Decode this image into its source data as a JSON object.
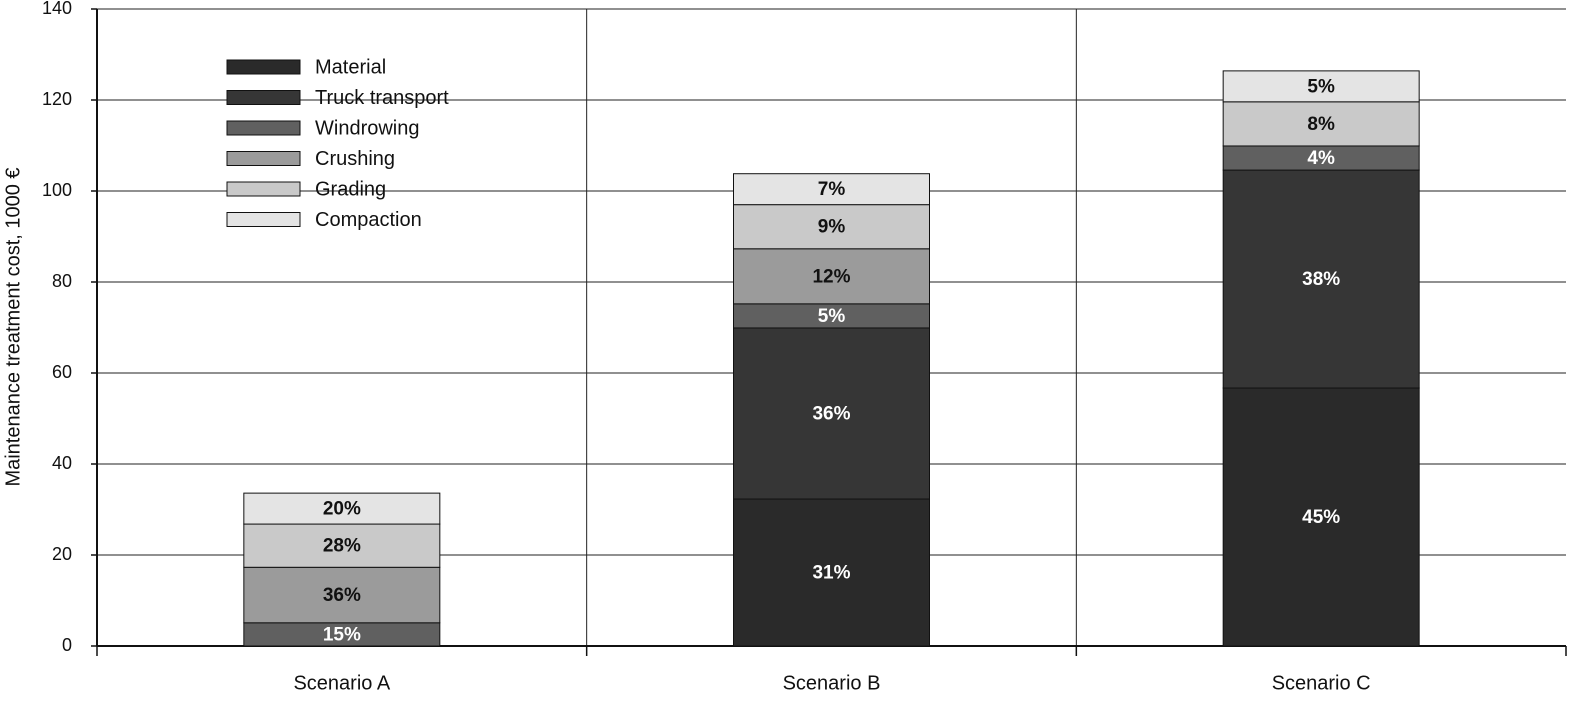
{
  "chart_data": {
    "type": "stacked_bar",
    "y_label": "Maintenance treatment cost, 1000 €",
    "categories": [
      "Scenario A",
      "Scenario B",
      "Scenario C"
    ],
    "ylim": [
      0,
      140
    ],
    "yticks": [
      0,
      20,
      40,
      60,
      80,
      100,
      120,
      140
    ],
    "grid": true,
    "legend": "upper left",
    "series": [
      {
        "name": "Material",
        "color": "#2a2a2a",
        "values": [
          0,
          32.3,
          56.7
        ],
        "share_labels": [
          null,
          "31%",
          "45%"
        ]
      },
      {
        "name": "Truck transport",
        "color": "#363636",
        "values": [
          0,
          37.6,
          47.9
        ],
        "share_labels": [
          null,
          "36%",
          "38%"
        ]
      },
      {
        "name": "Windrowing",
        "color": "#606060",
        "values": [
          5.1,
          5.3,
          5.3
        ],
        "share_labels": [
          "15%",
          "5%",
          "4%"
        ]
      },
      {
        "name": "Crushing",
        "color": "#9b9b9b",
        "values": [
          12.2,
          12.1,
          0
        ],
        "share_labels": [
          "36%",
          "12%",
          null
        ]
      },
      {
        "name": "Grading",
        "color": "#c9c9c9",
        "values": [
          9.5,
          9.7,
          9.7
        ],
        "share_labels": [
          "28%",
          "9%",
          "8%"
        ]
      },
      {
        "name": "Compaction",
        "color": "#e4e4e4",
        "values": [
          6.8,
          6.8,
          6.8
        ],
        "share_labels": [
          "20%",
          "7%",
          "5%"
        ]
      }
    ]
  }
}
